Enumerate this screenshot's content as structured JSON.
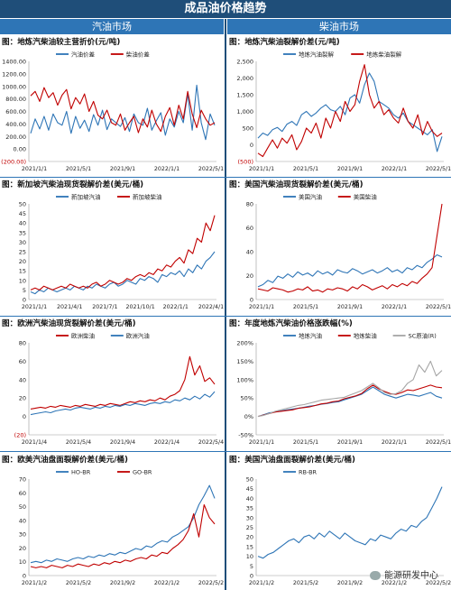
{
  "header": {
    "title": "成品油价格趋势",
    "left_section": "汽油市场",
    "right_section": "柴油市场"
  },
  "watermark": "能源研发中心",
  "chart_data": [
    {
      "type": "line",
      "title": "图：地炼汽柴油较主营折价(元/吨)",
      "yticks": [
        "1400.00",
        "1200.00",
        "1000.00",
        "800.00",
        "600.00",
        "400.00",
        "200.00",
        "0.00",
        "(200.00)"
      ],
      "ylim": [
        -200,
        1400
      ],
      "xticks": [
        "2021/1/1",
        "2021/5/1",
        "2021/9/1",
        "2022/1/1",
        "2022/5/1"
      ],
      "legend_position": "top",
      "series": [
        {
          "name": "汽油价差",
          "color": "#2e75b6",
          "values": [
            250,
            480,
            320,
            520,
            300,
            560,
            420,
            380,
            600,
            250,
            520,
            330,
            460,
            280,
            550,
            380,
            620,
            310,
            480,
            420,
            360,
            500,
            280,
            560,
            420,
            380,
            650,
            300,
            450,
            580,
            220,
            480,
            350,
            600,
            420,
            880,
            300,
            1020,
            420,
            150,
            560,
            380
          ]
        },
        {
          "name": "柴油价差",
          "color": "#c00000",
          "values": [
            850,
            920,
            760,
            980,
            820,
            900,
            700,
            860,
            950,
            640,
            820,
            720,
            880,
            600,
            760,
            540,
            480,
            620,
            420,
            380,
            560,
            300,
            420,
            520,
            260,
            480,
            350,
            620,
            400,
            280,
            520,
            660,
            380,
            700,
            480,
            920,
            560,
            340,
            620,
            480,
            380,
            420
          ]
        }
      ]
    },
    {
      "type": "line",
      "title": "图：地炼汽柴油裂解价差(元/吨)",
      "yticks": [
        "2,500",
        "2,000",
        "1,500",
        "1,000",
        "500",
        "0",
        "(500)"
      ],
      "ylim": [
        -500,
        2500
      ],
      "xticks": [
        "2021/1/1",
        "2021/5/1",
        "2021/9/1",
        "2022/1/1",
        "2022/5/1"
      ],
      "legend_position": "top",
      "series": [
        {
          "name": "地炼汽油裂解",
          "color": "#2e75b6",
          "values": [
            200,
            350,
            280,
            450,
            520,
            400,
            620,
            700,
            580,
            900,
            1000,
            850,
            950,
            1100,
            1200,
            1050,
            1000,
            1150,
            900,
            1400,
            1500,
            1250,
            1800,
            2150,
            1900,
            1300,
            1200,
            1100,
            900,
            800,
            950,
            700,
            600,
            500,
            400,
            300,
            450,
            -200,
            250
          ]
        },
        {
          "name": "地炼柴油裂解",
          "color": "#c00000",
          "values": [
            -250,
            -350,
            -100,
            150,
            -100,
            200,
            50,
            300,
            -150,
            100,
            500,
            350,
            650,
            200,
            800,
            500,
            1000,
            700,
            1300,
            1000,
            1200,
            1900,
            2400,
            1500,
            1100,
            1300,
            900,
            1050,
            800,
            650,
            1100,
            700,
            500,
            900,
            300,
            700,
            400,
            250,
            350
          ]
        }
      ]
    },
    {
      "type": "line",
      "title": "图：新加坡汽柴油现货裂解价差(美元/桶)",
      "yticks": [
        "50",
        "45",
        "40",
        "35",
        "30",
        "25",
        "20",
        "15",
        "10",
        "5",
        "0"
      ],
      "ylim": [
        0,
        50
      ],
      "xticks": [
        "2021/1/1",
        "2021/4/1",
        "2021/7/1",
        "2021/10/1",
        "2022/1/1",
        "2022/4/1"
      ],
      "legend_position": "top",
      "series": [
        {
          "name": "新加坡汽油",
          "color": "#2e75b6",
          "values": [
            4,
            3,
            5,
            4,
            6,
            5,
            4,
            5,
            6,
            5,
            7,
            6,
            5,
            7,
            6,
            8,
            7,
            6,
            8,
            9,
            7,
            8,
            10,
            9,
            8,
            11,
            10,
            12,
            11,
            9,
            13,
            12,
            14,
            13,
            15,
            12,
            16,
            14,
            18,
            16,
            20,
            22,
            25
          ]
        },
        {
          "name": "新加坡柴油",
          "color": "#c00000",
          "values": [
            5,
            6,
            5,
            7,
            6,
            5,
            6,
            7,
            6,
            8,
            7,
            6,
            7,
            6,
            8,
            9,
            7,
            8,
            10,
            9,
            8,
            9,
            11,
            10,
            12,
            13,
            12,
            14,
            13,
            16,
            15,
            18,
            17,
            20,
            22,
            19,
            26,
            24,
            32,
            30,
            40,
            36,
            44
          ]
        }
      ]
    },
    {
      "type": "line",
      "title": "图：美国汽柴油现货裂解价差(美元/桶)",
      "yticks": [
        "80",
        "60",
        "40",
        "20",
        "0"
      ],
      "ylim": [
        0,
        90
      ],
      "xticks": [
        "2021/1/1",
        "2021/5/1",
        "2021/9/1",
        "2022/1/1",
        "2022/5/1"
      ],
      "legend_position": "top",
      "series": [
        {
          "name": "美国汽油",
          "color": "#2e75b6",
          "values": [
            12,
            14,
            18,
            16,
            22,
            20,
            24,
            21,
            26,
            23,
            25,
            22,
            27,
            24,
            26,
            23,
            28,
            26,
            25,
            29,
            27,
            24,
            26,
            28,
            25,
            27,
            30,
            26,
            28,
            25,
            30,
            28,
            32,
            30,
            35,
            38,
            42,
            40
          ]
        },
        {
          "name": "美国柴油",
          "color": "#c00000",
          "values": [
            10,
            9,
            8,
            11,
            10,
            9,
            7,
            8,
            10,
            9,
            12,
            8,
            9,
            7,
            10,
            9,
            11,
            10,
            8,
            12,
            10,
            14,
            12,
            9,
            11,
            13,
            10,
            14,
            12,
            15,
            13,
            17,
            15,
            20,
            24,
            30,
            60,
            90
          ]
        }
      ]
    },
    {
      "type": "line",
      "title": "图：欧洲汽柴油现货裂解价差(美元/桶)",
      "yticks": [
        "80",
        "60",
        "40",
        "20",
        "0",
        "(20)"
      ],
      "ylim": [
        -20,
        80
      ],
      "xticks": [
        "2021/1/4",
        "2021/5/4",
        "2021/9/4",
        "2022/1/4",
        "2022/5/4"
      ],
      "legend_position": "top",
      "series": [
        {
          "name": "欧洲柴油",
          "color": "#c00000",
          "values": [
            8,
            9,
            10,
            9,
            11,
            10,
            12,
            11,
            10,
            12,
            11,
            13,
            12,
            11,
            13,
            12,
            14,
            13,
            12,
            14,
            16,
            15,
            17,
            16,
            18,
            17,
            20,
            18,
            22,
            24,
            28,
            40,
            65,
            45,
            55,
            38,
            42,
            35
          ]
        },
        {
          "name": "欧洲汽油",
          "color": "#2e75b6",
          "values": [
            2,
            3,
            4,
            5,
            4,
            6,
            7,
            8,
            7,
            9,
            10,
            9,
            8,
            10,
            9,
            11,
            10,
            12,
            11,
            13,
            12,
            14,
            13,
            12,
            14,
            15,
            14,
            16,
            15,
            18,
            17,
            20,
            18,
            22,
            19,
            24,
            21,
            27
          ]
        }
      ]
    },
    {
      "type": "line",
      "title": "图：年度地炼汽柴油价格涨跌幅(%)",
      "yticks": [
        "200%",
        "150%",
        "100%",
        "50%",
        "0%",
        "-50%"
      ],
      "ylim": [
        -50,
        200
      ],
      "xticks": [
        "2021/1/1",
        "2021/5/1",
        "2021/9/1",
        "2022/1/1",
        "2022/5/1"
      ],
      "legend_position": "top",
      "series": [
        {
          "name": "地炼汽油",
          "color": "#2e75b6",
          "values": [
            0,
            5,
            10,
            12,
            15,
            18,
            20,
            22,
            25,
            28,
            30,
            33,
            35,
            38,
            40,
            45,
            50,
            55,
            60,
            70,
            80,
            70,
            60,
            55,
            50,
            55,
            60,
            58,
            55,
            60,
            65,
            55,
            50
          ]
        },
        {
          "name": "地炼柴油",
          "color": "#c00000",
          "values": [
            0,
            4,
            8,
            12,
            14,
            16,
            18,
            22,
            24,
            26,
            30,
            34,
            36,
            40,
            42,
            48,
            52,
            56,
            62,
            75,
            85,
            75,
            68,
            62,
            60,
            65,
            72,
            70,
            75,
            80,
            85,
            80,
            78
          ]
        },
        {
          "name": "SC原油(R)",
          "color": "#a6a6a6",
          "values": [
            0,
            3,
            8,
            14,
            18,
            22,
            26,
            30,
            32,
            36,
            40,
            44,
            46,
            48,
            50,
            52,
            58,
            64,
            70,
            80,
            90,
            78,
            65,
            60,
            62,
            70,
            90,
            100,
            140,
            120,
            150,
            110,
            125
          ]
        }
      ]
    },
    {
      "type": "line",
      "title": "图：欧美汽油盘面裂解价差(美元/桶)",
      "yticks": [
        "70",
        "60",
        "50",
        "40",
        "30",
        "20",
        "10",
        "0"
      ],
      "ylim": [
        0,
        75
      ],
      "xticks": [
        "2021/1/2",
        "2021/5/2",
        "2021/9/2",
        "2022/1/2",
        "2022/5/2"
      ],
      "legend_position": "top",
      "series": [
        {
          "name": "HO-BR",
          "color": "#2e75b6",
          "values": [
            10,
            11,
            10,
            12,
            11,
            13,
            12,
            11,
            13,
            14,
            13,
            15,
            14,
            16,
            15,
            17,
            16,
            18,
            17,
            19,
            21,
            20,
            23,
            22,
            25,
            27,
            26,
            30,
            32,
            35,
            38,
            45,
            55,
            62,
            70,
            60
          ]
        },
        {
          "name": "GO-BR",
          "color": "#c00000",
          "values": [
            7,
            6,
            7,
            6,
            8,
            7,
            6,
            8,
            7,
            9,
            8,
            7,
            9,
            8,
            10,
            9,
            11,
            10,
            12,
            11,
            13,
            14,
            13,
            16,
            15,
            18,
            17,
            21,
            24,
            28,
            35,
            48,
            30,
            55,
            45,
            40
          ]
        }
      ]
    },
    {
      "type": "line",
      "title": "图：美国汽油盘面裂解价差(美元/桶)",
      "yticks": [
        "50",
        "45",
        "40",
        "35",
        "30",
        "25",
        "20",
        "15",
        "10",
        "5",
        "0"
      ],
      "ylim": [
        0,
        50
      ],
      "xticks": [
        "2021/1/2",
        "2021/5/2",
        "2021/9/2",
        "2022/1/2",
        "2022/5/2"
      ],
      "legend_position": "top",
      "series": [
        {
          "name": "RB-BR",
          "color": "#2e75b6",
          "values": [
            10,
            9,
            11,
            12,
            14,
            16,
            18,
            19,
            17,
            20,
            21,
            19,
            22,
            20,
            23,
            21,
            19,
            22,
            20,
            18,
            17,
            16,
            19,
            18,
            21,
            20,
            19,
            22,
            24,
            23,
            26,
            25,
            28,
            30,
            35,
            40,
            46
          ]
        }
      ]
    }
  ]
}
